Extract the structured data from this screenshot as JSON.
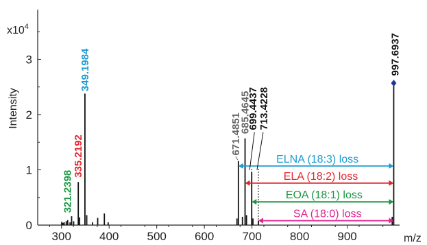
{
  "chart_data": {
    "type": "line",
    "title": "",
    "xlabel": "m/z",
    "ylabel": "Intensity",
    "y_multiplier": "x10",
    "y_multiplier_exp": "4",
    "xlim": [
      250,
      1010
    ],
    "ylim": [
      0,
      3.9
    ],
    "x_ticks": [
      300,
      400,
      500,
      600,
      700,
      800,
      900
    ],
    "y_ticks": [
      0,
      1,
      2,
      3
    ],
    "series": [
      {
        "peaks": [
          {
            "mz": 300.5,
            "intensity": 0.06
          },
          {
            "mz": 303.0,
            "intensity": 0.04
          },
          {
            "mz": 305.5,
            "intensity": 0.05
          },
          {
            "mz": 310.0,
            "intensity": 0.07
          },
          {
            "mz": 313.0,
            "intensity": 0.09
          },
          {
            "mz": 318.0,
            "intensity": 0.05
          },
          {
            "mz": 321.2398,
            "intensity": 0.16
          },
          {
            "mz": 325.5,
            "intensity": 0.07
          },
          {
            "mz": 335.2192,
            "intensity": 0.78
          },
          {
            "mz": 338.0,
            "intensity": 0.14
          },
          {
            "mz": 349.1984,
            "intensity": 2.38
          },
          {
            "mz": 353.0,
            "intensity": 0.18
          },
          {
            "mz": 365.0,
            "intensity": 0.05
          },
          {
            "mz": 376.0,
            "intensity": 0.13
          },
          {
            "mz": 390.0,
            "intensity": 0.21
          },
          {
            "mz": 398.0,
            "intensity": 0.05
          },
          {
            "mz": 668.5,
            "intensity": 0.12
          },
          {
            "mz": 671.4851,
            "intensity": 1.16
          },
          {
            "mz": 680.0,
            "intensity": 0.15
          },
          {
            "mz": 685.4645,
            "intensity": 1.57
          },
          {
            "mz": 688.5,
            "intensity": 0.18
          },
          {
            "mz": 699.4437,
            "intensity": 0.96
          },
          {
            "mz": 702.0,
            "intensity": 0.12
          },
          {
            "mz": 713.4228,
            "intensity": 0.08
          },
          {
            "mz": 994.5,
            "intensity": 0.15
          },
          {
            "mz": 997.6937,
            "intensity": 2.57
          }
        ]
      }
    ],
    "peak_labels": [
      {
        "mz": 321.2398,
        "text": "321.2398",
        "color": "#1a9641"
      },
      {
        "mz": 335.2192,
        "text": "335.2192",
        "color": "#e3262d"
      },
      {
        "mz": 349.1984,
        "text": "349.1984",
        "color": "#1b9bd0"
      },
      {
        "mz": 671.4851,
        "text": "671.4851",
        "color": "#666666"
      },
      {
        "mz": 685.4645,
        "text": "685.4645",
        "color": "#666666"
      },
      {
        "mz": 699.4437,
        "text": "699.4437",
        "color": "#111111"
      },
      {
        "mz": 713.4228,
        "text": "713.4228",
        "color": "#111111"
      },
      {
        "mz": 997.6937,
        "text": "997.6937",
        "color": "#111111"
      }
    ],
    "losses": [
      {
        "from": 671.4851,
        "to": 997.6937,
        "label": "ELNA (18:3) loss",
        "color": "#1b9bd0"
      },
      {
        "from": 685.4645,
        "to": 997.6937,
        "label": "ELA (18:2) loss",
        "color": "#e3262d"
      },
      {
        "from": 699.4437,
        "to": 997.6937,
        "label": "EOA (18:1) loss",
        "color": "#1a9641"
      },
      {
        "from": 713.4228,
        "to": 997.6937,
        "label": "SA (18:0) loss",
        "color": "#e0258f"
      }
    ],
    "precursor_marker": {
      "mz": 997.6937,
      "intensity": 2.57,
      "color": "#1f3a93"
    }
  }
}
